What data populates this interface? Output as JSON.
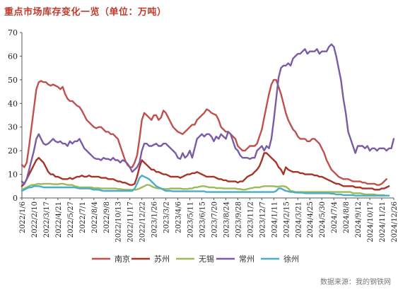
{
  "title": "重点市场库存变化一览（单位：万吨）",
  "source": "数据来源：我的钢铁网",
  "chart_data": {
    "type": "line",
    "title": "重点市场库存变化一览（单位：万吨）",
    "unit": "万吨",
    "ylim": [
      0,
      70
    ],
    "yticks": [
      0,
      10,
      20,
      30,
      40,
      50,
      60,
      70
    ],
    "grid": false,
    "legend_position": "bottom",
    "x_tick_labels": [
      "2022/1/6",
      "2022/2/10",
      "2022/3/17",
      "2022/4/21",
      "2022/5/27",
      "2022/7/1",
      "2022/8/4",
      "2022/9/8",
      "2022/10/13",
      "2022/11/17",
      "2022/12/22",
      "2023/1/26",
      "2023/3/2",
      "2023/4/6",
      "2023/5/11",
      "2023/6/15",
      "2023/7/20",
      "2023/8/24",
      "2023/9/28",
      "2023/11/2",
      "2023/12/7",
      "2024/1/11",
      "2024/2/15",
      "2024/3/21",
      "2024/4/25",
      "2024/5/30",
      "2024/7/4",
      "2024/8/8",
      "2024/9/12",
      "2024/10/17",
      "2024/11/21",
      "2024/12/26"
    ],
    "points_per_tick": 5,
    "series": [
      {
        "name": "南京",
        "color": "#c0504d",
        "values": [
          14,
          13,
          15,
          22,
          30,
          38,
          46,
          49,
          49.5,
          49,
          49,
          48,
          47.5,
          48,
          47.5,
          47,
          46,
          47,
          44,
          42,
          41,
          41,
          40,
          39,
          38.5,
          37,
          35,
          33,
          32,
          31,
          30,
          29.5,
          30,
          30,
          29,
          28,
          28,
          27,
          27,
          26,
          25,
          22,
          19,
          16,
          14,
          13,
          13,
          15,
          18,
          25,
          33,
          36,
          35,
          34,
          33,
          35,
          35,
          33,
          34,
          37,
          36,
          34,
          32,
          30,
          29,
          28,
          27.5,
          27,
          28,
          29,
          30,
          31,
          31,
          33,
          34,
          35,
          36,
          37.5,
          37,
          36,
          35.5,
          35,
          33,
          30,
          29,
          28,
          28,
          27,
          26,
          25,
          22,
          21,
          20,
          20,
          21,
          22,
          22,
          22,
          23,
          26,
          29,
          34,
          39,
          44,
          48,
          50,
          50,
          47,
          44,
          40,
          36,
          33,
          31,
          29,
          28,
          26,
          25,
          25,
          25,
          24,
          24,
          25,
          25,
          24,
          23,
          21,
          19,
          16,
          14,
          12,
          11,
          10,
          9,
          8.5,
          8,
          8,
          8,
          7.5,
          7,
          7,
          7,
          7,
          6.5,
          6.5,
          6,
          6,
          6,
          6,
          5.5,
          5.5,
          6,
          7,
          8
        ]
      },
      {
        "name": "苏州",
        "color": "#a93226",
        "values": [
          5,
          6,
          8,
          10,
          12,
          14,
          16,
          17,
          16,
          15,
          13,
          11,
          10,
          10,
          9,
          9,
          8.5,
          8,
          8,
          8,
          8.5,
          8,
          8.5,
          9,
          9,
          9.5,
          9,
          9,
          9.5,
          9,
          9,
          9,
          9,
          8.5,
          8.5,
          8.5,
          8,
          8,
          8,
          7.5,
          7,
          7,
          6.5,
          6.5,
          6,
          5.5,
          5.5,
          6,
          9,
          13,
          16,
          15,
          14,
          13,
          12,
          12,
          11,
          11,
          10.5,
          10,
          10,
          9.5,
          9,
          9,
          9,
          9,
          8.5,
          9,
          9.5,
          10,
          10,
          10.5,
          10.5,
          11,
          10.5,
          10,
          9.5,
          9,
          9,
          9,
          9,
          8.5,
          8,
          8,
          7.5,
          7.5,
          7,
          7,
          7,
          7,
          6.5,
          7,
          7,
          8,
          9,
          9.5,
          10,
          11,
          12,
          13.5,
          16,
          19,
          19,
          18,
          17,
          16,
          15,
          13,
          12,
          10,
          13,
          12,
          11.5,
          11,
          11,
          11,
          10.5,
          10.5,
          10,
          10,
          10,
          10,
          9.5,
          9.5,
          9,
          9,
          8.5,
          8,
          7.5,
          7,
          6.5,
          6,
          6,
          5.5,
          5,
          5,
          5,
          5,
          5,
          4.5,
          4.5,
          4.5,
          4,
          4,
          4,
          4,
          4,
          3.5,
          3.5,
          3.5,
          4,
          4,
          4.5,
          5
        ]
      },
      {
        "name": "无锡",
        "color": "#9bbb59",
        "values": [
          3.5,
          4,
          4.5,
          5,
          5.5,
          5.5,
          5.8,
          6,
          5.8,
          6,
          6,
          6,
          6,
          5.8,
          5.8,
          5.8,
          6,
          6,
          5.8,
          5.5,
          5.5,
          5.5,
          5,
          4.8,
          4.5,
          4.5,
          4.5,
          4.5,
          4.5,
          4.5,
          4.2,
          4.2,
          4.2,
          4,
          4,
          4,
          4,
          4,
          4,
          4,
          3.8,
          3.8,
          3.6,
          3.5,
          3.5,
          3.5,
          3.5,
          3.5,
          3.6,
          4,
          4.5,
          5,
          5.5,
          5.5,
          5,
          4.5,
          4.2,
          4,
          4,
          3.8,
          3.8,
          3.8,
          4,
          4,
          4,
          4,
          4,
          3.8,
          3.8,
          3.8,
          4,
          4,
          4.5,
          4.5,
          4.8,
          5,
          5,
          4.8,
          4.5,
          4.5,
          4.5,
          4.2,
          4.2,
          4.2,
          4,
          4,
          4,
          4,
          4,
          4,
          3.8,
          3.8,
          3.5,
          3.5,
          3.8,
          4,
          4.2,
          4.5,
          4.5,
          4.5,
          4.8,
          5,
          5,
          5,
          5,
          5,
          4.8,
          4.8,
          5,
          5,
          4.8,
          4,
          3,
          2.8,
          2.5,
          2.5,
          2.5,
          2.5,
          2.5,
          2.5,
          2.5,
          2.5,
          2.5,
          2.5,
          2.5,
          2.5,
          2.5,
          2.5,
          2.5,
          2.5,
          2.5,
          2.5,
          2.5,
          2.5,
          2.5,
          2.5,
          2.5,
          2.5,
          2,
          2,
          2,
          2,
          1.8,
          1.5,
          1.5,
          1.5,
          1.5,
          1.5,
          1.2,
          1.2,
          1.2,
          1.2
        ]
      },
      {
        "name": "常州",
        "color": "#7b5aa6",
        "values": [
          7,
          6,
          8,
          12,
          16,
          20,
          25,
          27,
          25,
          23,
          22.5,
          23,
          24,
          25,
          24,
          23.5,
          24,
          23,
          23,
          22,
          24,
          23,
          24,
          24,
          25,
          23,
          21,
          20,
          19,
          18,
          17,
          16.5,
          16.5,
          16,
          17,
          16.5,
          16.5,
          16,
          17,
          16,
          16,
          15,
          16,
          15.5,
          14.5,
          13,
          11,
          12,
          13,
          15,
          20,
          23,
          23,
          22,
          22,
          22.5,
          23,
          22,
          22,
          23,
          23,
          22,
          21,
          20,
          19,
          17,
          16.5,
          19,
          17,
          18,
          20,
          17,
          21,
          25,
          26,
          27,
          26,
          27,
          27,
          26,
          24,
          26,
          25,
          27,
          26,
          25,
          28,
          27,
          24,
          21,
          20,
          18,
          17,
          17,
          17,
          16.5,
          17,
          17,
          20,
          21,
          22,
          20,
          22,
          21,
          25,
          33,
          42,
          51,
          55,
          56,
          56,
          57,
          56,
          59,
          60,
          61,
          61,
          62,
          63,
          61,
          62,
          62,
          62,
          63,
          61,
          62,
          62,
          62,
          64,
          65,
          64,
          60,
          55,
          50,
          42,
          36,
          28,
          25,
          22,
          19,
          22,
          22,
          22,
          21,
          22,
          20,
          21,
          21,
          20,
          21,
          21,
          21,
          20,
          21,
          21,
          25
        ]
      },
      {
        "name": "徐州",
        "color": "#4bacc6",
        "values": [
          3,
          3.5,
          4,
          4.5,
          4.5,
          5,
          5,
          5,
          4.8,
          4.5,
          4.5,
          4.5,
          4.5,
          4.5,
          4.5,
          4.5,
          4.5,
          4.5,
          4.5,
          4.5,
          4.5,
          4.5,
          4.5,
          4.2,
          4,
          4,
          4,
          4,
          4,
          3.8,
          3.5,
          3.5,
          3.5,
          3.2,
          3,
          3,
          3,
          3,
          3,
          3,
          3,
          3,
          3,
          3,
          3,
          3,
          3,
          4,
          6,
          8.5,
          9.5,
          9,
          8.5,
          8,
          7,
          6,
          5,
          4.5,
          4,
          3.5,
          3,
          3,
          3,
          2.8,
          2.8,
          2.8,
          2.8,
          2.8,
          2.8,
          2.8,
          2.8,
          2.8,
          2.8,
          2.8,
          2.8,
          2.8,
          2.8,
          2.5,
          2.5,
          2.5,
          2.5,
          2.5,
          2.5,
          2.5,
          2.5,
          2.5,
          2.5,
          2.5,
          2.5,
          2.5,
          2.5,
          2.5,
          2.5,
          2.5,
          2.5,
          2.5,
          2.5,
          2.5,
          2.5,
          2.5,
          2.5,
          2.5,
          2.5,
          2.5,
          2.5,
          2.5,
          3,
          4,
          4,
          3.5,
          3,
          2.8,
          2.5,
          2.5,
          2.3,
          2.2,
          2.2,
          2.2,
          2,
          2,
          2,
          2,
          2,
          2,
          2,
          2,
          2,
          2,
          2,
          1.8,
          1.8,
          1.5,
          1.5,
          1.5,
          1.2,
          1.2,
          1.2,
          1.2,
          1.2,
          1,
          1,
          1,
          1,
          1,
          1,
          1,
          1,
          1,
          1,
          1,
          1,
          1,
          1,
          1
        ]
      }
    ]
  }
}
